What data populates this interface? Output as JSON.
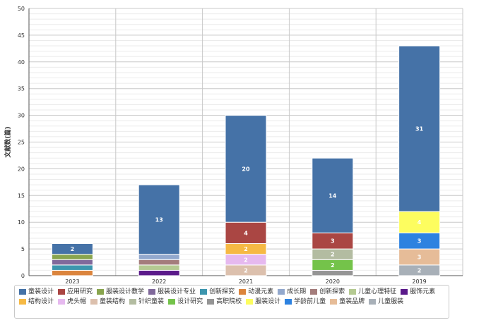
{
  "chart_data": {
    "type": "bar",
    "stacked": true,
    "ylabel": "文献数(篇)",
    "ylim": [
      0,
      50
    ],
    "yticks": [
      0,
      5,
      10,
      15,
      20,
      25,
      30,
      35,
      40,
      45,
      50
    ],
    "grid": true,
    "legend_position": "bottom",
    "categories": [
      "2023",
      "2022",
      "2021",
      "2020",
      "2019"
    ],
    "series": [
      {
        "name": "童装设计",
        "color": "#4572a7",
        "values": [
          2,
          13,
          20,
          14,
          31
        ]
      },
      {
        "name": "应用研究",
        "color": "#aa4643",
        "values": [
          0,
          0,
          4,
          3,
          0
        ]
      },
      {
        "name": "服装设计教学",
        "color": "#89a54e",
        "values": [
          1,
          0,
          0,
          0,
          0
        ]
      },
      {
        "name": "服装设计专业",
        "color": "#80699b",
        "values": [
          1,
          0,
          0,
          0,
          0
        ]
      },
      {
        "name": "创新探究",
        "color": "#3d96ae",
        "values": [
          1,
          0,
          0,
          0,
          0
        ]
      },
      {
        "name": "动漫元素",
        "color": "#db843d",
        "values": [
          1,
          0,
          0,
          0,
          0
        ]
      },
      {
        "name": "成长期",
        "color": "#92a8cd",
        "values": [
          0,
          1,
          0,
          0,
          0
        ]
      },
      {
        "name": "创新探索",
        "color": "#a47d7c",
        "values": [
          0,
          1,
          0,
          0,
          0
        ]
      },
      {
        "name": "儿童心理特征",
        "color": "#b5ca92",
        "values": [
          0,
          1,
          0,
          0,
          0
        ]
      },
      {
        "name": "服饰元素",
        "color": "#5b1a8a",
        "values": [
          0,
          1,
          0,
          0,
          0
        ]
      },
      {
        "name": "结构设计",
        "color": "#f6b944",
        "values": [
          0,
          0,
          2,
          0,
          0
        ]
      },
      {
        "name": "虎头帽",
        "color": "#e6b9ef",
        "values": [
          0,
          0,
          2,
          0,
          0
        ]
      },
      {
        "name": "童装结构",
        "color": "#dcc0ad",
        "values": [
          0,
          0,
          2,
          0,
          0
        ]
      },
      {
        "name": "针织童装",
        "color": "#b3bca1",
        "values": [
          0,
          0,
          0,
          2,
          0
        ]
      },
      {
        "name": "设计研究",
        "color": "#74c34a",
        "values": [
          0,
          0,
          0,
          2,
          0
        ]
      },
      {
        "name": "高职院校",
        "color": "#959595",
        "values": [
          0,
          0,
          0,
          1,
          0
        ]
      },
      {
        "name": "服装设计",
        "color": "#fdfd5f",
        "values": [
          0,
          0,
          0,
          0,
          4
        ]
      },
      {
        "name": "学龄前儿童",
        "color": "#2d82e0",
        "values": [
          0,
          0,
          0,
          0,
          3
        ]
      },
      {
        "name": "童装品牌",
        "color": "#e6bc98",
        "values": [
          0,
          0,
          0,
          0,
          3
        ]
      },
      {
        "name": "儿童服装",
        "color": "#a8b0b8",
        "values": [
          0,
          0,
          0,
          0,
          2
        ]
      }
    ],
    "stack_order": [
      [
        "动漫元素",
        "创新探究",
        "服装设计专业",
        "服装设计教学",
        "童装设计"
      ],
      [
        "服饰元素",
        "儿童心理特征",
        "创新探索",
        "成长期",
        "童装设计"
      ],
      [
        "童装结构",
        "虎头帽",
        "结构设计",
        "应用研究",
        "童装设计"
      ],
      [
        "高职院校",
        "设计研究",
        "针织童装",
        "应用研究",
        "童装设计"
      ],
      [
        "儿童服装",
        "童装品牌",
        "学龄前儿童",
        "服装设计",
        "童装设计"
      ]
    ]
  }
}
